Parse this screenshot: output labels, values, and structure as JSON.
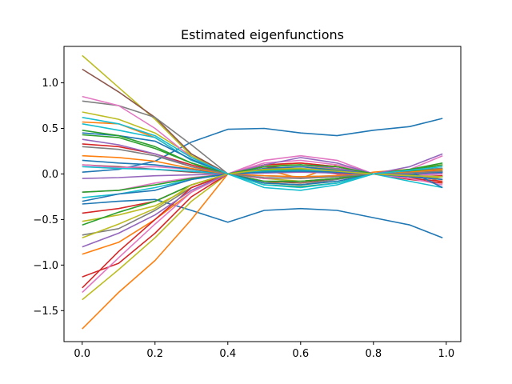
{
  "chart_data": {
    "type": "line",
    "title": "Estimated eigenfunctions",
    "xlabel": "",
    "ylabel": "",
    "xlim": [
      -0.05,
      1.04
    ],
    "ylim": [
      -1.84,
      1.4
    ],
    "xticks": [
      "0.0",
      "0.2",
      "0.4",
      "0.6",
      "0.8",
      "1.0"
    ],
    "yticks": [
      "−1.5",
      "−1.0",
      "−0.5",
      "0.0",
      "0.5",
      "1.0"
    ],
    "grid": false,
    "legend": "none",
    "x": [
      0.0,
      0.1,
      0.2,
      0.3,
      0.4,
      0.5,
      0.6,
      0.7,
      0.8,
      0.9,
      0.99
    ],
    "series": [
      {
        "color": "#1f77b4",
        "values": [
          -0.33,
          -0.3,
          -0.28,
          -0.4,
          -0.53,
          -0.4,
          -0.38,
          -0.4,
          -0.48,
          -0.56,
          -0.7
        ]
      },
      {
        "color": "#1f77b4",
        "values": [
          0.02,
          0.05,
          0.14,
          0.35,
          0.49,
          0.5,
          0.45,
          0.42,
          0.48,
          0.52,
          0.61
        ]
      },
      {
        "color": "#ff7f0e",
        "values": [
          -1.7,
          -1.3,
          -0.95,
          -0.5,
          0.0,
          0.05,
          -0.05,
          0.1,
          0.0,
          0.05,
          -0.1
        ]
      },
      {
        "color": "#ff7f0e",
        "values": [
          -0.88,
          -0.75,
          -0.5,
          -0.2,
          0.0,
          -0.1,
          -0.08,
          -0.05,
          0.02,
          0.05,
          0.1
        ]
      },
      {
        "color": "#ff7f0e",
        "values": [
          0.57,
          0.55,
          0.4,
          0.15,
          0.0,
          0.1,
          0.12,
          0.08,
          0.0,
          -0.05,
          -0.03
        ]
      },
      {
        "color": "#bcbd22",
        "values": [
          1.3,
          0.95,
          0.6,
          0.2,
          0.0,
          0.05,
          0.08,
          0.05,
          0.0,
          0.03,
          0.05
        ]
      },
      {
        "color": "#bcbd22",
        "values": [
          -1.38,
          -1.05,
          -0.7,
          -0.3,
          0.0,
          0.1,
          0.1,
          0.06,
          0.0,
          -0.02,
          0.0
        ]
      },
      {
        "color": "#bcbd22",
        "values": [
          0.68,
          0.6,
          0.45,
          0.2,
          0.0,
          -0.05,
          -0.08,
          -0.05,
          0.0,
          0.02,
          -0.06
        ]
      },
      {
        "color": "#bcbd22",
        "values": [
          -0.52,
          -0.45,
          -0.35,
          -0.15,
          0.0,
          0.08,
          0.05,
          0.02,
          0.0,
          0.02,
          0.04
        ]
      },
      {
        "color": "#8c564b",
        "values": [
          1.15,
          0.9,
          0.62,
          0.22,
          0.0,
          -0.08,
          -0.1,
          -0.05,
          0.0,
          0.04,
          0.06
        ]
      },
      {
        "color": "#8c564b",
        "values": [
          0.1,
          0.08,
          0.05,
          0.02,
          0.0,
          0.02,
          0.03,
          0.02,
          0.0,
          -0.02,
          0.02
        ]
      },
      {
        "color": "#7f7f7f",
        "values": [
          0.8,
          0.75,
          0.62,
          0.32,
          0.0,
          -0.1,
          -0.12,
          -0.06,
          0.0,
          0.04,
          0.06
        ]
      },
      {
        "color": "#7f7f7f",
        "values": [
          -0.67,
          -0.6,
          -0.4,
          -0.15,
          0.0,
          0.05,
          0.04,
          0.02,
          0.0,
          -0.02,
          -0.03
        ]
      },
      {
        "color": "#d62728",
        "values": [
          -1.13,
          -0.98,
          -0.65,
          -0.25,
          0.0,
          0.08,
          0.05,
          0.0,
          0.0,
          -0.05,
          -0.08
        ]
      },
      {
        "color": "#d62728",
        "values": [
          -1.25,
          -0.85,
          -0.5,
          -0.15,
          0.0,
          0.1,
          0.12,
          0.08,
          0.0,
          -0.06,
          -0.1
        ]
      },
      {
        "color": "#d62728",
        "values": [
          0.33,
          0.3,
          0.22,
          0.1,
          0.0,
          -0.05,
          -0.04,
          -0.02,
          0.0,
          0.02,
          0.03
        ]
      },
      {
        "color": "#d62728",
        "values": [
          -0.43,
          -0.38,
          -0.3,
          -0.12,
          0.0,
          0.04,
          0.03,
          0.02,
          0.0,
          -0.03,
          -0.02
        ]
      },
      {
        "color": "#e377c2",
        "values": [
          0.85,
          0.75,
          0.5,
          0.18,
          0.0,
          0.15,
          0.2,
          0.15,
          0.0,
          0.05,
          0.2
        ]
      },
      {
        "color": "#e377c2",
        "values": [
          -1.3,
          -0.92,
          -0.55,
          -0.2,
          0.0,
          0.12,
          0.15,
          0.1,
          0.0,
          -0.05,
          -0.12
        ]
      },
      {
        "color": "#e377c2",
        "values": [
          0.1,
          0.07,
          0.08,
          0.05,
          0.0,
          -0.05,
          -0.04,
          -0.02,
          0.0,
          0.02,
          0.02
        ]
      },
      {
        "color": "#e377c2",
        "values": [
          -0.2,
          -0.18,
          -0.1,
          -0.04,
          0.0,
          0.05,
          0.06,
          0.04,
          0.0,
          -0.02,
          0.0
        ]
      },
      {
        "color": "#2ca02c",
        "values": [
          -0.56,
          -0.42,
          -0.3,
          -0.12,
          0.0,
          -0.12,
          -0.14,
          -0.1,
          0.0,
          0.05,
          0.12
        ]
      },
      {
        "color": "#2ca02c",
        "values": [
          0.43,
          0.4,
          0.28,
          0.12,
          0.0,
          -0.08,
          -0.08,
          -0.05,
          0.0,
          0.03,
          0.05
        ]
      },
      {
        "color": "#2ca02c",
        "values": [
          -0.2,
          -0.18,
          -0.12,
          -0.05,
          0.0,
          0.04,
          0.05,
          0.03,
          0.0,
          -0.01,
          0.02
        ]
      },
      {
        "color": "#17becf",
        "values": [
          0.55,
          0.48,
          0.4,
          0.15,
          0.0,
          -0.15,
          -0.18,
          -0.12,
          0.0,
          -0.08,
          -0.15
        ]
      },
      {
        "color": "#17becf",
        "values": [
          0.08,
          0.06,
          0.05,
          0.03,
          0.0,
          -0.02,
          -0.03,
          -0.02,
          0.0,
          0.01,
          0.02
        ]
      },
      {
        "color": "#17becf",
        "values": [
          -0.26,
          -0.22,
          -0.15,
          -0.06,
          0.0,
          0.03,
          0.04,
          0.03,
          0.0,
          -0.02,
          -0.03
        ]
      },
      {
        "color": "#9467bd",
        "values": [
          0.38,
          0.32,
          0.22,
          0.08,
          0.0,
          0.1,
          0.18,
          0.12,
          0.0,
          0.08,
          0.22
        ]
      },
      {
        "color": "#9467bd",
        "values": [
          -0.8,
          -0.65,
          -0.45,
          -0.18,
          0.0,
          0.08,
          0.1,
          0.06,
          0.0,
          -0.03,
          -0.06
        ]
      },
      {
        "color": "#9467bd",
        "values": [
          -0.05,
          -0.04,
          -0.02,
          -0.01,
          0.0,
          0.01,
          0.02,
          0.01,
          0.0,
          0.0,
          0.01
        ]
      },
      {
        "color": "#1f77b4",
        "values": [
          0.45,
          0.42,
          0.36,
          0.16,
          0.0,
          -0.1,
          -0.12,
          -0.08,
          0.0,
          0.03,
          -0.15
        ]
      },
      {
        "color": "#1f77b4",
        "values": [
          -0.3,
          -0.22,
          -0.18,
          -0.06,
          0.0,
          0.06,
          0.08,
          0.04,
          0.0,
          -0.03,
          -0.06
        ]
      },
      {
        "color": "#1f77b4",
        "values": [
          0.15,
          0.12,
          0.1,
          0.05,
          0.0,
          0.02,
          0.03,
          0.02,
          0.0,
          0.01,
          0.02
        ]
      },
      {
        "color": "#ff7f0e",
        "values": [
          0.2,
          0.18,
          0.14,
          0.06,
          0.0,
          -0.02,
          -0.03,
          -0.02,
          0.0,
          0.02,
          0.05
        ]
      },
      {
        "color": "#2ca02c",
        "values": [
          0.48,
          0.42,
          0.3,
          0.12,
          0.0,
          0.08,
          0.1,
          0.08,
          0.0,
          0.04,
          0.1
        ]
      },
      {
        "color": "#7f7f7f",
        "values": [
          0.3,
          0.27,
          0.2,
          0.08,
          0.0,
          -0.04,
          -0.05,
          -0.03,
          0.0,
          0.01,
          0.03
        ]
      },
      {
        "color": "#bcbd22",
        "values": [
          -0.7,
          -0.55,
          -0.38,
          -0.12,
          0.0,
          0.05,
          0.06,
          0.03,
          0.0,
          -0.02,
          -0.03
        ]
      },
      {
        "color": "#17becf",
        "values": [
          0.62,
          0.55,
          0.42,
          0.18,
          0.0,
          -0.12,
          -0.15,
          -0.1,
          0.0,
          0.04,
          0.08
        ]
      }
    ]
  }
}
